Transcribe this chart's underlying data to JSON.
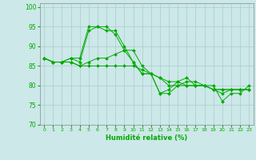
{
  "xlabel": "Humidité relative (%)",
  "bg_color": "#cce8e8",
  "grid_color": "#aacccc",
  "line_color": "#00aa00",
  "marker": "D",
  "marker_size": 2.0,
  "xlim": [
    -0.5,
    23.5
  ],
  "ylim": [
    70,
    101
  ],
  "yticks": [
    70,
    75,
    80,
    85,
    90,
    95,
    100
  ],
  "xticks": [
    0,
    1,
    2,
    3,
    4,
    5,
    6,
    7,
    8,
    9,
    10,
    11,
    12,
    13,
    14,
    15,
    16,
    17,
    18,
    19,
    20,
    21,
    22,
    23
  ],
  "series": [
    [
      87,
      86,
      86,
      87,
      87,
      95,
      95,
      94,
      94,
      90,
      86,
      83,
      83,
      78,
      78,
      80,
      81,
      81,
      80,
      79,
      78,
      79,
      79,
      79
    ],
    [
      87,
      86,
      86,
      87,
      86,
      94,
      95,
      95,
      93,
      89,
      86,
      83,
      83,
      78,
      79,
      81,
      82,
      80,
      80,
      80,
      76,
      78,
      78,
      80
    ],
    [
      87,
      86,
      86,
      86,
      85,
      86,
      87,
      87,
      88,
      89,
      89,
      85,
      83,
      82,
      80,
      80,
      80,
      80,
      80,
      79,
      79,
      79,
      79,
      79
    ],
    [
      87,
      86,
      86,
      86,
      85,
      85,
      85,
      85,
      85,
      85,
      85,
      84,
      83,
      82,
      81,
      81,
      80,
      80,
      80,
      79,
      79,
      79,
      79,
      79
    ]
  ]
}
